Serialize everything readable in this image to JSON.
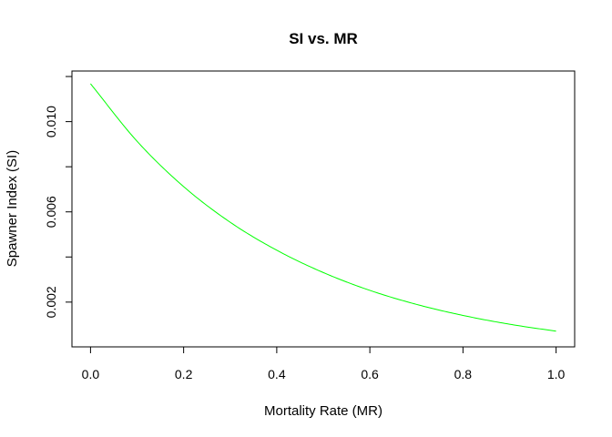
{
  "chart_data": {
    "type": "line",
    "title": "SI vs. MR",
    "xlabel": "Mortality Rate (MR)",
    "ylabel": "Spawner Index (SI)",
    "xlim": [
      0.0,
      1.0
    ],
    "ylim": [
      0.0005,
      0.0118
    ],
    "x_ticks": [
      0.0,
      0.2,
      0.4,
      0.6,
      0.8,
      1.0
    ],
    "x_tick_labels": [
      "0.0",
      "0.2",
      "0.4",
      "0.6",
      "0.8",
      "1.0"
    ],
    "y_ticks": [
      0.002,
      0.004,
      0.006,
      0.008,
      0.01,
      0.012
    ],
    "y_tick_labels": [
      "0.002",
      "",
      "0.006",
      "",
      "0.010",
      ""
    ],
    "grid": false,
    "series": [
      {
        "color": "#00ff00",
        "x": [
          0.0,
          0.1,
          0.2,
          0.3,
          0.4,
          0.5,
          0.6,
          0.7,
          0.8,
          0.9,
          1.0
        ],
        "y": [
          0.01168,
          0.00913,
          0.00712,
          0.00554,
          0.0043,
          0.00331,
          0.00252,
          0.0019,
          0.00141,
          0.00102,
          0.00071
        ]
      }
    ]
  }
}
